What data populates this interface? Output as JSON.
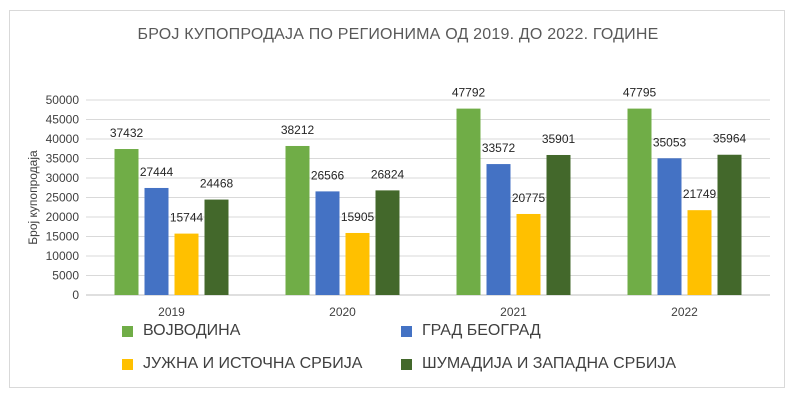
{
  "chart_data": {
    "type": "bar",
    "title": "БРОЈ КУПОПРОДАЈА ПО РЕГИОНИМА ОД 2019. ДО 2022. ГОДИНЕ",
    "ylabel": "Број купопродаја",
    "xlabel": "",
    "categories": [
      "2019",
      "2020",
      "2021",
      "2022"
    ],
    "ylim": [
      0,
      50000
    ],
    "yticks": [
      0,
      5000,
      10000,
      15000,
      20000,
      25000,
      30000,
      35000,
      40000,
      45000,
      50000
    ],
    "grid": true,
    "legend_position": "bottom",
    "series": [
      {
        "name": "ВОЈВОДИНА",
        "color": "#70AD47",
        "values": [
          37432,
          38212,
          47792,
          47795
        ]
      },
      {
        "name": "ГРАД БЕОГРАД",
        "color": "#4472C4",
        "values": [
          27444,
          26566,
          33572,
          35053
        ]
      },
      {
        "name": "ЈУЖНА И ИСТОЧНА СРБИЈА",
        "color": "#FFC000",
        "values": [
          15744,
          15905,
          20775,
          21749
        ]
      },
      {
        "name": "ШУМАДИЈА И ЗАПАДНА СРБИЈА",
        "color": "#43682B",
        "values": [
          24468,
          26824,
          35901,
          35964
        ]
      }
    ]
  }
}
